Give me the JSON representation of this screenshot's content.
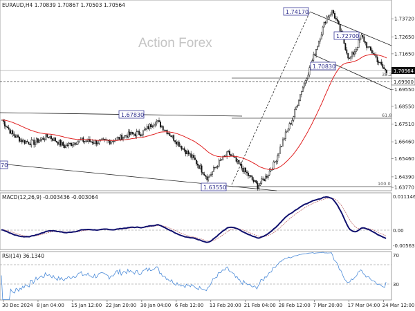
{
  "header": {
    "main": "EURAUD,H4  1.70839 1.70867 1.70503 1.70564",
    "macd": "MACD(12,26,9) -0.003436 -0.003064",
    "rsi": "RSI(14) 36.1340"
  },
  "watermark": "Action Forex",
  "price_axis": {
    "ticks": [
      "1.73720",
      "1.72650",
      "1.71650",
      "1.69550",
      "1.68550",
      "1.67510",
      "1.66460",
      "1.65460",
      "1.64390",
      "1.63770"
    ],
    "current_price": "1.70564",
    "level_price": "1.69900"
  },
  "macd_axis": {
    "ticks": [
      "0.011146",
      "0.00",
      "-0.005639"
    ]
  },
  "rsi_axis": {
    "ticks": [
      "70",
      "30"
    ]
  },
  "x_axis": {
    "labels": [
      "30 Dec 2024",
      "8 Jan 04:00",
      "15 Jan 12:00",
      "22 Jan 20:00",
      "30 Jan 04:00",
      "6 Feb 12:00",
      "13 Feb 20:00",
      "21 Feb 04:00",
      "28 Feb 12:00",
      "7 Mar 20:00",
      "17 Mar 04:00",
      "24 Mar 12:00"
    ]
  },
  "annotations": {
    "high_1": "1.74170",
    "high_2": "1.72700",
    "low_1": "1.70830",
    "mid_high": "1.67830",
    "low_2": "1.63550",
    "left_cut": "70"
  },
  "fib": {
    "f38": "38.2",
    "f61": "61.8",
    "f100": "100.0"
  },
  "colors": {
    "candle": "#111111",
    "ma": "#e02020",
    "macd_line": "#10106e",
    "signal_line": "#c07070",
    "rsi_line": "#4a8ad8",
    "annotation_border": "#3a3a9a",
    "channel": "#222222"
  },
  "chart_data": {
    "type": "line",
    "title": "EURAUD,H4",
    "ohlc_last": {
      "open": 1.70839,
      "high": 1.70867,
      "low": 1.70503,
      "close": 1.70564
    },
    "x": [
      "30 Dec 2024",
      "8 Jan 04:00",
      "15 Jan 12:00",
      "22 Jan 20:00",
      "30 Jan 04:00",
      "6 Feb 12:00",
      "13 Feb 20:00",
      "21 Feb 04:00",
      "28 Feb 12:00",
      "7 Mar 20:00",
      "17 Mar 04:00",
      "24 Mar 12:00"
    ],
    "ylim": [
      1.6357,
      1.745
    ],
    "series": [
      {
        "name": "EURAUD,H4",
        "values": [
          1.675,
          1.664,
          1.661,
          1.6655,
          1.677,
          1.647,
          1.652,
          1.642,
          1.683,
          1.735,
          1.715,
          1.722
        ]
      }
    ],
    "macd": {
      "macd": -0.003436,
      "signal": -0.003064,
      "range": [
        -0.005639,
        0.011146
      ]
    },
    "rsi": {
      "value": 36.134,
      "levels": [
        70,
        30
      ]
    }
  }
}
